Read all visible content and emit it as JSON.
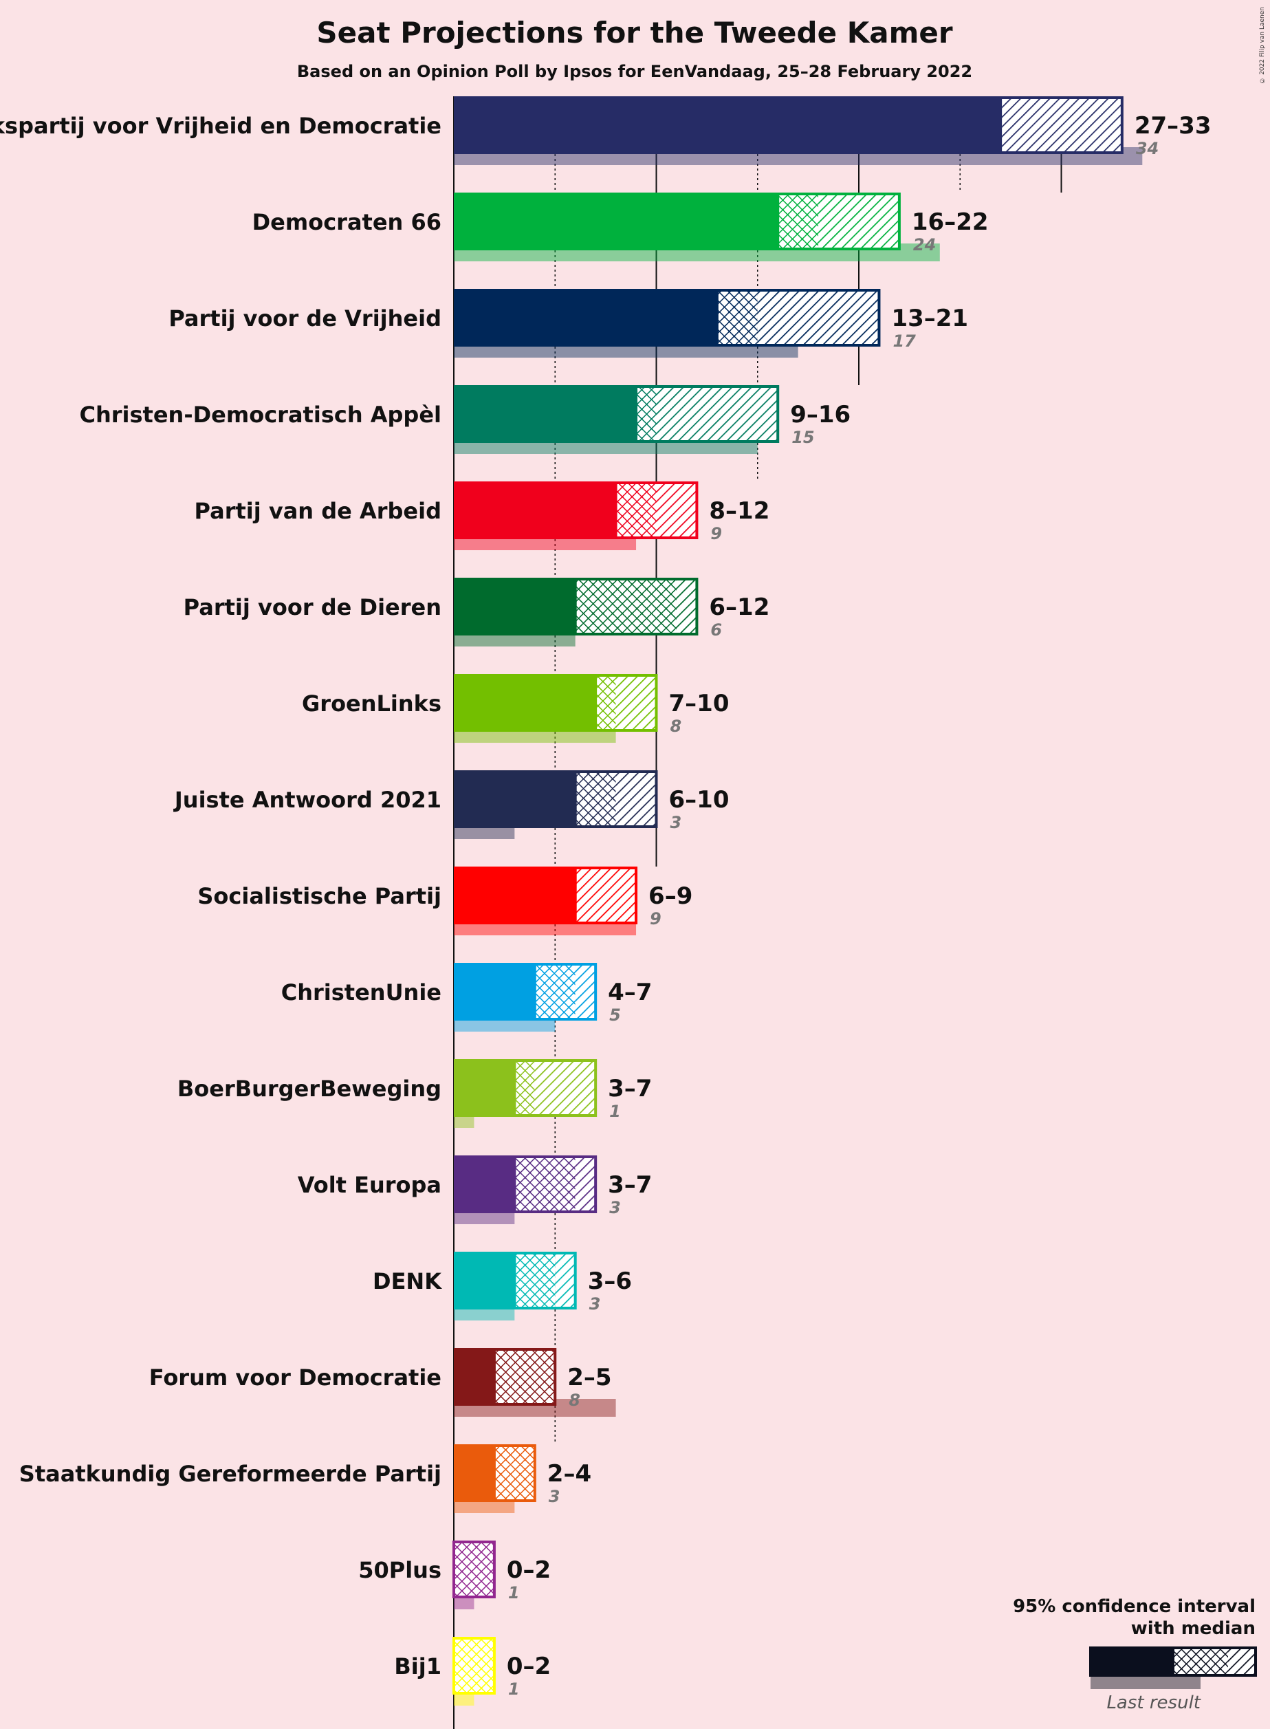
{
  "title": "Seat Projections for the Tweede Kamer",
  "subtitle": "Based on an Opinion Poll by Ipsos for EenVandaag, 25–28 February 2022",
  "copyright": "© 2022 Filip van Laenen",
  "legend": {
    "line1": "95% confidence interval",
    "line2": "with median",
    "last_result": "Last result"
  },
  "chart_data": {
    "type": "bar",
    "orientation": "horizontal",
    "title": "Seat Projections for the Tweede Kamer",
    "subtitle": "Based on an Opinion Poll by Ipsos for EenVandaag, 25–28 February 2022",
    "xlim": [
      0,
      34
    ],
    "gridlines": [
      5,
      10,
      15,
      20,
      25,
      30
    ],
    "majority_lines": [
      10,
      20,
      30
    ],
    "parties": [
      {
        "name": "Volkspartij voor Vrijheid en Democratie",
        "low": 27,
        "median": 27,
        "high": 33,
        "last": 34,
        "color": "#262c66",
        "range_label": "27–33",
        "last_label": "34"
      },
      {
        "name": "Democraten 66",
        "low": 16,
        "median": 18,
        "high": 22,
        "last": 24,
        "color": "#00b13d",
        "range_label": "16–22",
        "last_label": "24"
      },
      {
        "name": "Partij voor de Vrijheid",
        "low": 13,
        "median": 15,
        "high": 21,
        "last": 17,
        "color": "#002759",
        "range_label": "13–21",
        "last_label": "17"
      },
      {
        "name": "Christen-Democratisch Appèl",
        "low": 9,
        "median": 10,
        "high": 16,
        "last": 15,
        "color": "#007b5f",
        "range_label": "9–16",
        "last_label": "15"
      },
      {
        "name": "Partij van de Arbeid",
        "low": 8,
        "median": 10,
        "high": 12,
        "last": 9,
        "color": "#f0001c",
        "range_label": "8–12",
        "last_label": "9"
      },
      {
        "name": "Partij voor de Dieren",
        "low": 6,
        "median": 11,
        "high": 12,
        "last": 6,
        "color": "#006b2d",
        "range_label": "6–12",
        "last_label": "6"
      },
      {
        "name": "GroenLinks",
        "low": 7,
        "median": 8,
        "high": 10,
        "last": 8,
        "color": "#73bf00",
        "range_label": "7–10",
        "last_label": "8"
      },
      {
        "name": "Juiste Antwoord 2021",
        "low": 6,
        "median": 8,
        "high": 10,
        "last": 3,
        "color": "#222b52",
        "range_label": "6–10",
        "last_label": "3"
      },
      {
        "name": "Socialistische Partij",
        "low": 6,
        "median": 6,
        "high": 9,
        "last": 9,
        "color": "#ff0000",
        "range_label": "6–9",
        "last_label": "9"
      },
      {
        "name": "ChristenUnie",
        "low": 4,
        "median": 6,
        "high": 7,
        "last": 5,
        "color": "#00a0e2",
        "range_label": "4–7",
        "last_label": "5"
      },
      {
        "name": "BoerBurgerBeweging",
        "low": 3,
        "median": 4,
        "high": 7,
        "last": 1,
        "color": "#8cc11c",
        "range_label": "3–7",
        "last_label": "1"
      },
      {
        "name": "Volt Europa",
        "low": 3,
        "median": 6,
        "high": 7,
        "last": 3,
        "color": "#582c83",
        "range_label": "3–7",
        "last_label": "3"
      },
      {
        "name": "DENK",
        "low": 3,
        "median": 5,
        "high": 6,
        "last": 3,
        "color": "#00b9b4",
        "range_label": "3–6",
        "last_label": "3"
      },
      {
        "name": "Forum voor Democratie",
        "low": 2,
        "median": 5,
        "high": 5,
        "last": 8,
        "color": "#841818",
        "range_label": "2–5",
        "last_label": "8"
      },
      {
        "name": "Staatkundig Gereformeerde Partij",
        "low": 2,
        "median": 4,
        "high": 4,
        "last": 3,
        "color": "#ea5b0c",
        "range_label": "2–4",
        "last_label": "3"
      },
      {
        "name": "50Plus",
        "low": 0,
        "median": 2,
        "high": 2,
        "last": 1,
        "color": "#92278f",
        "range_label": "0–2",
        "last_label": "1"
      },
      {
        "name": "Bij1",
        "low": 0,
        "median": 2,
        "high": 2,
        "last": 1,
        "color": "#ffff00",
        "range_label": "0–2",
        "last_label": "1"
      }
    ]
  }
}
